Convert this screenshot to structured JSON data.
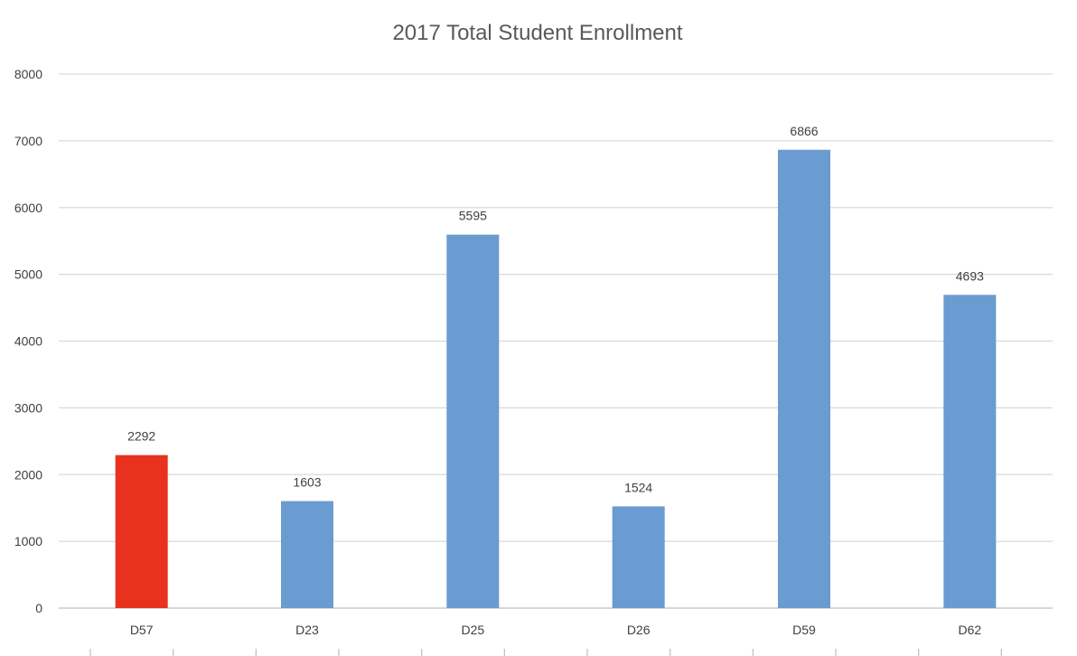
{
  "chart_data": {
    "type": "bar",
    "title": "2017 Total Student Enrollment",
    "xlabel": "",
    "ylabel": "",
    "categories": [
      "D57",
      "D23",
      "D25",
      "D26",
      "D59",
      "D62"
    ],
    "values": [
      2292,
      1603,
      5595,
      1524,
      6866,
      4693
    ],
    "data_labels": [
      "2292",
      "1603",
      "5595",
      "1524",
      "6866",
      "4693"
    ],
    "ylim": [
      0,
      8000
    ],
    "yticks": [
      0,
      1000,
      2000,
      3000,
      4000,
      5000,
      6000,
      7000,
      8000
    ],
    "ytick_labels": [
      "0",
      "1000",
      "2000",
      "3000",
      "4000",
      "5000",
      "6000",
      "7000",
      "8000"
    ],
    "grid": true,
    "legend": "none",
    "colors": {
      "default": "#6a9bd1",
      "highlight": "#e8321f",
      "highlight_category": "D57"
    }
  }
}
